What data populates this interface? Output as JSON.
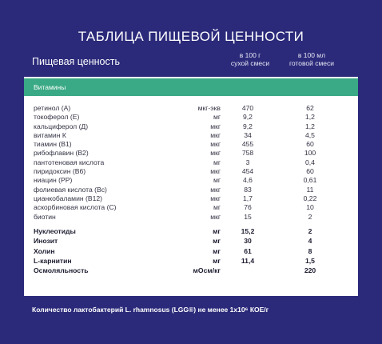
{
  "title": "ТАБЛИЦА ПИЩЕВОЙ ЦЕННОСТИ",
  "header": {
    "label": "Пищевая ценность",
    "col1_line1": "в 100 г",
    "col1_line2": "сухой смеси",
    "col2_line1": "в 100 мл",
    "col2_line2": "готовой смеси"
  },
  "section": "Витамины",
  "vitamins": [
    {
      "name": "ретинол (А)",
      "unit": "мкг-экв",
      "v1": "470",
      "v2": "62"
    },
    {
      "name": "токоферол (Е)",
      "unit": "мг",
      "v1": "9,2",
      "v2": "1,2"
    },
    {
      "name": "кальциферол (Д)",
      "unit": "мкг",
      "v1": "9,2",
      "v2": "1,2"
    },
    {
      "name": "витамин К",
      "unit": "мкг",
      "v1": "34",
      "v2": "4,5"
    },
    {
      "name": "тиамин (В1)",
      "unit": "мкг",
      "v1": "455",
      "v2": "60"
    },
    {
      "name": "рибофлавин (В2)",
      "unit": "мкг",
      "v1": "758",
      "v2": "100"
    },
    {
      "name": "пантотеновая кислота",
      "unit": "мг",
      "v1": "3",
      "v2": "0,4"
    },
    {
      "name": "пиридоксин (В6)",
      "unit": "мкг",
      "v1": "454",
      "v2": "60"
    },
    {
      "name": "ниацин (РР)",
      "unit": "мг",
      "v1": "4,6",
      "v2": "0,61"
    },
    {
      "name": "фолиевая кислота (Вс)",
      "unit": "мкг",
      "v1": "83",
      "v2": "11"
    },
    {
      "name": "цианкобаламин (В12)",
      "unit": "мкг",
      "v1": "1,7",
      "v2": "0,22"
    },
    {
      "name": "аскорбиновая кислота (С)",
      "unit": "мг",
      "v1": "76",
      "v2": "10"
    },
    {
      "name": "биотин",
      "unit": "мкг",
      "v1": "15",
      "v2": "2"
    }
  ],
  "others": [
    {
      "name": "Нуклеотиды",
      "unit": "мг",
      "v1": "15,2",
      "v2": "2"
    },
    {
      "name": "Инозит",
      "unit": "мг",
      "v1": "30",
      "v2": "4"
    },
    {
      "name": "Холин",
      "unit": "мг",
      "v1": "61",
      "v2": "8"
    },
    {
      "name": "L-карнитин",
      "unit": "мг",
      "v1": "11,4",
      "v2": "1,5"
    },
    {
      "name": "Осмоляльность",
      "unit": "мОсм/кг",
      "v1": "",
      "v2": "220"
    }
  ],
  "footnote": "Количество лактобактерий L. rhamnosus (LGG®) не менее 1x10⁶ КОЕ/г"
}
